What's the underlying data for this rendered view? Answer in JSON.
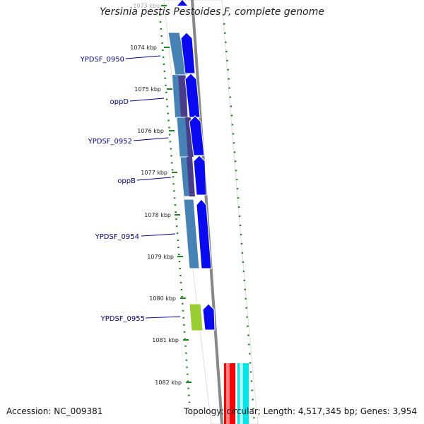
{
  "map": {
    "title": "Yersinia pestis Pestoides F, complete genome",
    "accession": "Accession: NC_009381",
    "topology": "Topology: circular; Length: 4,517,345 bp; Genes: 3,954",
    "ticks": [
      "1073 kbp",
      "1074 kbp",
      "1075 kbp",
      "1076 kbp",
      "1077 kbp",
      "1078 kbp",
      "1079 kbp",
      "1080 kbp",
      "1081 kbp",
      "1082 kbp"
    ],
    "gene_labels": [
      "YPDSF_0950",
      "oppD",
      "YPDSF_0952",
      "oppB",
      "YPDSF_0954",
      "YPDSF_0955"
    ],
    "colors": {
      "backbone": "#888888",
      "ring_guides": "#1a8a1a",
      "cds_arrow": "#0a0af0",
      "feature_steelblue": "#4682b4",
      "feature_darkslate": "#483d8b",
      "feature_green": "#9acd32",
      "feature_red": "#ff0000",
      "feature_cyan": "#00ffff",
      "label_text": "#00008b"
    }
  }
}
